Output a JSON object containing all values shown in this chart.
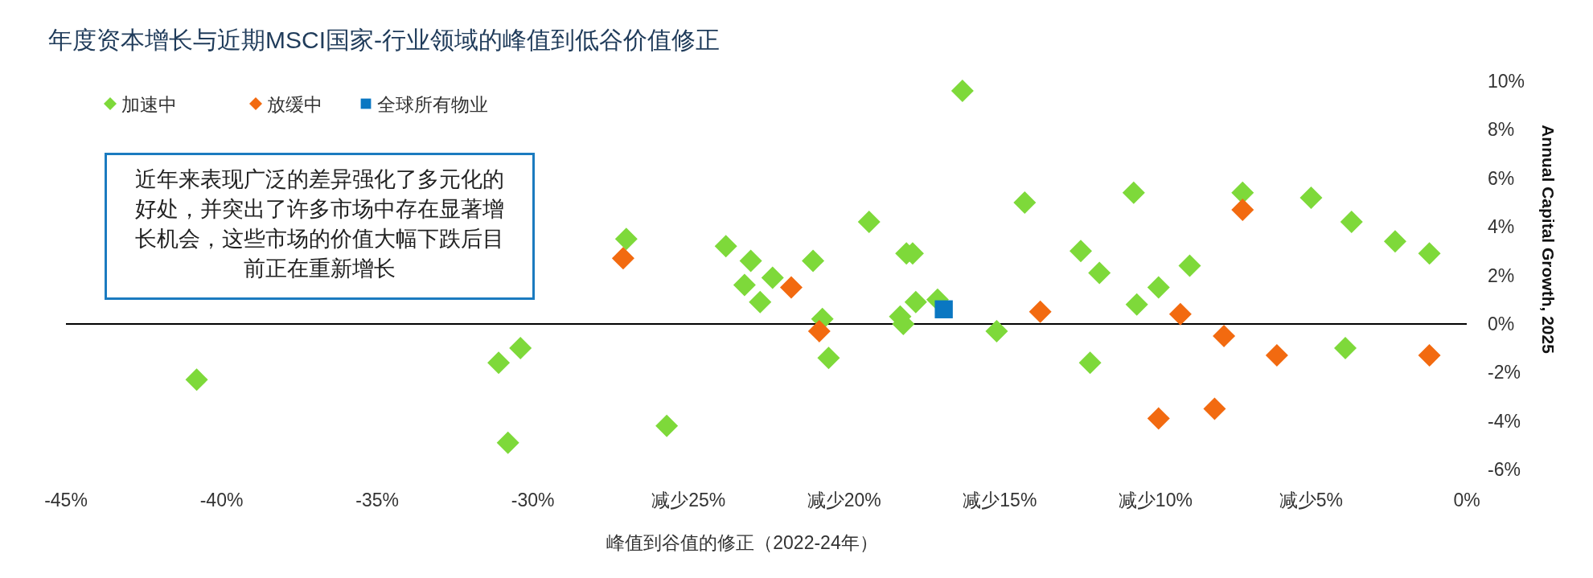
{
  "chart_data": {
    "type": "scatter",
    "title": "年度资本增长与近期MSCI国家-行业领域的峰值到低谷价值修正",
    "xlabel": "峰值到谷值的修正（2022-24年）",
    "ylabel": "Annual Capital Growth, 2025",
    "annotations": [
      "近年来表现广泛的差异强化了多元化的好处，并突出了许多市场中存在显著增长机会，这些市场的价值大幅下跌后目前正在重新增长"
    ],
    "legend": "top left",
    "xlim": [
      -45,
      0
    ],
    "ylim": [
      -6,
      10
    ],
    "xticks": [
      {
        "value": -45,
        "label": "-45%"
      },
      {
        "value": -40,
        "label": "-40%"
      },
      {
        "value": -35,
        "label": "-35%"
      },
      {
        "value": -30,
        "label": "-30%"
      },
      {
        "value": -25,
        "label": "减少25%"
      },
      {
        "value": -20,
        "label": "减少20%"
      },
      {
        "value": -15,
        "label": "减少15%"
      },
      {
        "value": -10,
        "label": "减少10%"
      },
      {
        "value": -5,
        "label": "减少5%"
      },
      {
        "value": 0,
        "label": "0%"
      }
    ],
    "yticks": [
      {
        "value": -6,
        "label": "-6%"
      },
      {
        "value": -4,
        "label": "-4%"
      },
      {
        "value": -2,
        "label": "-2%"
      },
      {
        "value": 0,
        "label": "0%"
      },
      {
        "value": 2,
        "label": "2%"
      },
      {
        "value": 4,
        "label": "4%"
      },
      {
        "value": 6,
        "label": "6%"
      },
      {
        "value": 8,
        "label": "8%"
      },
      {
        "value": 10,
        "label": "10%"
      }
    ],
    "series": [
      {
        "name": "加速中",
        "color": "#7ed93a",
        "marker": "diamond",
        "x": [
          -40.8,
          -31.1,
          -30.4,
          -30.8,
          -27.0,
          -25.7,
          -23.8,
          -23.0,
          -23.2,
          -22.7,
          -22.3,
          -21.0,
          -20.7,
          -20.5,
          -19.2,
          -18.2,
          -18.1,
          -18.0,
          -17.8,
          -17.7,
          -17.0,
          -16.2,
          -15.1,
          -14.2,
          -12.4,
          -12.1,
          -11.8,
          -10.7,
          -10.6,
          -9.9,
          -8.9,
          -7.2,
          -5.0,
          -3.7,
          -2.3,
          -1.2,
          -3.9
        ],
        "values": [
          -2.3,
          -1.6,
          -1.0,
          -4.9,
          3.5,
          -4.2,
          3.2,
          2.6,
          1.6,
          0.9,
          1.9,
          2.6,
          0.2,
          -1.4,
          4.2,
          0.3,
          0.0,
          2.9,
          2.9,
          0.9,
          1.0,
          9.6,
          -0.3,
          5.0,
          3.0,
          -1.6,
          2.1,
          5.4,
          0.8,
          1.5,
          2.4,
          5.4,
          5.2,
          4.2,
          3.4,
          2.9,
          -1.0
        ]
      },
      {
        "name": "放缓中",
        "color": "#f26a10",
        "marker": "diamond",
        "x": [
          -27.1,
          -21.7,
          -20.8,
          -13.7,
          -9.9,
          -9.2,
          -8.1,
          -7.8,
          -7.2,
          -6.1,
          -1.2
        ],
        "values": [
          2.7,
          1.5,
          -0.3,
          0.5,
          -3.9,
          0.4,
          -3.5,
          -0.5,
          4.7,
          -1.3,
          -1.3
        ]
      },
      {
        "name": "全球所有物业",
        "color": "#0a77c2",
        "marker": "square",
        "x": [
          -16.8
        ],
        "values": [
          0.6
        ]
      }
    ]
  }
}
